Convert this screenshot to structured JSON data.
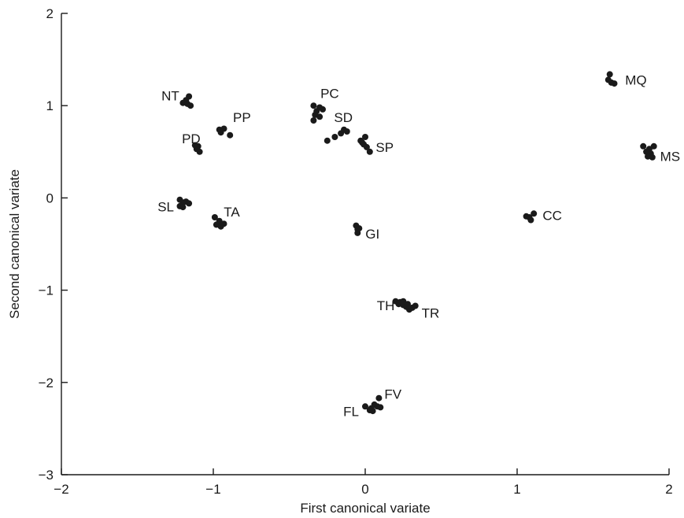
{
  "chart_data": {
    "type": "scatter",
    "xlabel": "First canonical variate",
    "ylabel": "Second canonical variate",
    "xlim": [
      -2,
      2
    ],
    "ylim": [
      -3,
      2
    ],
    "x_ticks": [
      {
        "value": -2,
        "label": "−2"
      },
      {
        "value": -1,
        "label": "−1"
      },
      {
        "value": 0,
        "label": "0"
      },
      {
        "value": 1,
        "label": "1"
      },
      {
        "value": 2,
        "label": "2"
      }
    ],
    "y_ticks": [
      {
        "value": -3,
        "label": "−3"
      },
      {
        "value": -2,
        "label": "−2"
      },
      {
        "value": -1,
        "label": "−1"
      },
      {
        "value": 0,
        "label": "0"
      },
      {
        "value": 1,
        "label": "1"
      },
      {
        "value": 2,
        "label": "2"
      }
    ],
    "grid": false,
    "legend": "none",
    "groups": [
      {
        "label": "NT",
        "points": [
          [
            -1.16,
            1.1
          ],
          [
            -1.18,
            1.06
          ],
          [
            -1.2,
            1.03
          ],
          [
            -1.17,
            1.02
          ],
          [
            -1.15,
            1.0
          ]
        ]
      },
      {
        "label": "PP",
        "points": [
          [
            -0.96,
            0.74
          ],
          [
            -0.93,
            0.75
          ],
          [
            -0.95,
            0.71
          ],
          [
            -0.89,
            0.68
          ]
        ]
      },
      {
        "label": "PD",
        "points": [
          [
            -1.12,
            0.57
          ],
          [
            -1.1,
            0.56
          ],
          [
            -1.11,
            0.53
          ],
          [
            -1.09,
            0.5
          ]
        ]
      },
      {
        "label": "PC",
        "points": [
          [
            -0.34,
            1.0
          ],
          [
            -0.3,
            0.98
          ],
          [
            -0.32,
            0.94
          ],
          [
            -0.28,
            0.96
          ],
          [
            -0.33,
            0.9
          ],
          [
            -0.3,
            0.88
          ],
          [
            -0.34,
            0.84
          ]
        ]
      },
      {
        "label": "SD",
        "points": [
          [
            -0.25,
            0.62
          ],
          [
            -0.2,
            0.66
          ],
          [
            -0.16,
            0.7
          ],
          [
            -0.14,
            0.74
          ],
          [
            -0.12,
            0.72
          ]
        ]
      },
      {
        "label": "SP",
        "points": [
          [
            0.0,
            0.66
          ],
          [
            -0.03,
            0.62
          ],
          [
            -0.01,
            0.58
          ],
          [
            0.01,
            0.55
          ],
          [
            0.03,
            0.5
          ],
          [
            -0.02,
            0.6
          ]
        ]
      },
      {
        "label": "MQ",
        "points": [
          [
            1.61,
            1.34
          ],
          [
            1.6,
            1.28
          ],
          [
            1.62,
            1.25
          ],
          [
            1.64,
            1.24
          ]
        ]
      },
      {
        "label": "MS",
        "points": [
          [
            1.83,
            0.56
          ],
          [
            1.87,
            0.53
          ],
          [
            1.9,
            0.56
          ],
          [
            1.85,
            0.5
          ],
          [
            1.88,
            0.48
          ],
          [
            1.86,
            0.45
          ],
          [
            1.89,
            0.44
          ]
        ]
      },
      {
        "label": "SL",
        "points": [
          [
            -1.22,
            -0.02
          ],
          [
            -1.2,
            -0.05
          ],
          [
            -1.18,
            -0.04
          ],
          [
            -1.16,
            -0.06
          ],
          [
            -1.22,
            -0.09
          ],
          [
            -1.2,
            -0.1
          ]
        ]
      },
      {
        "label": "TA",
        "points": [
          [
            -0.99,
            -0.21
          ],
          [
            -0.96,
            -0.25
          ],
          [
            -0.98,
            -0.29
          ],
          [
            -0.93,
            -0.28
          ],
          [
            -0.95,
            -0.31
          ]
        ]
      },
      {
        "label": "GI",
        "points": [
          [
            -0.06,
            -0.3
          ],
          [
            -0.05,
            -0.34
          ],
          [
            -0.04,
            -0.33
          ],
          [
            -0.05,
            -0.38
          ]
        ]
      },
      {
        "label": "CC",
        "points": [
          [
            1.08,
            -0.21
          ],
          [
            1.11,
            -0.17
          ],
          [
            1.09,
            -0.24
          ],
          [
            1.06,
            -0.2
          ]
        ]
      },
      {
        "label": "TH",
        "points": [
          [
            0.2,
            -1.12
          ],
          [
            0.23,
            -1.13
          ],
          [
            0.25,
            -1.12
          ],
          [
            0.22,
            -1.15
          ]
        ]
      },
      {
        "label": "TR",
        "points": [
          [
            0.25,
            -1.16
          ],
          [
            0.28,
            -1.15
          ],
          [
            0.31,
            -1.19
          ],
          [
            0.29,
            -1.21
          ],
          [
            0.33,
            -1.17
          ],
          [
            0.27,
            -1.18
          ]
        ]
      },
      {
        "label": "FL",
        "points": [
          [
            0.0,
            -2.26
          ]
        ]
      },
      {
        "label": "FV",
        "points": [
          [
            0.09,
            -2.17
          ],
          [
            0.06,
            -2.24
          ],
          [
            0.08,
            -2.26
          ],
          [
            0.04,
            -2.28
          ],
          [
            0.05,
            -2.31
          ],
          [
            0.1,
            -2.27
          ],
          [
            0.03,
            -2.3
          ]
        ]
      }
    ]
  }
}
